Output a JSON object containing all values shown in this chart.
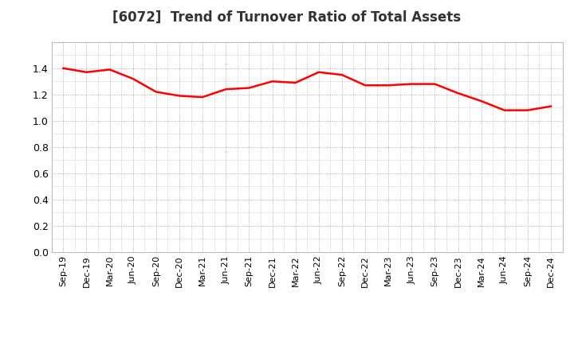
{
  "title": "[6072]  Trend of Turnover Ratio of Total Assets",
  "line_color": "#FF0000",
  "line_width": 1.8,
  "background_color": "#FFFFFF",
  "grid_color": "#999999",
  "ylim": [
    0.0,
    1.6
  ],
  "yticks": [
    0.0,
    0.2,
    0.4,
    0.6,
    0.8,
    1.0,
    1.2,
    1.4
  ],
  "labels": [
    "Sep-19",
    "Dec-19",
    "Mar-20",
    "Jun-20",
    "Sep-20",
    "Dec-20",
    "Mar-21",
    "Jun-21",
    "Sep-21",
    "Dec-21",
    "Mar-22",
    "Jun-22",
    "Sep-22",
    "Dec-22",
    "Mar-23",
    "Jun-23",
    "Sep-23",
    "Dec-23",
    "Mar-24",
    "Jun-24",
    "Sep-24",
    "Dec-24"
  ],
  "values": [
    1.4,
    1.37,
    1.39,
    1.32,
    1.22,
    1.19,
    1.18,
    1.24,
    1.25,
    1.3,
    1.29,
    1.37,
    1.35,
    1.27,
    1.27,
    1.28,
    1.28,
    1.21,
    1.15,
    1.08,
    1.08,
    1.11
  ],
  "title_fontsize": 12,
  "tick_fontsize": 8,
  "ytick_fontsize": 9
}
